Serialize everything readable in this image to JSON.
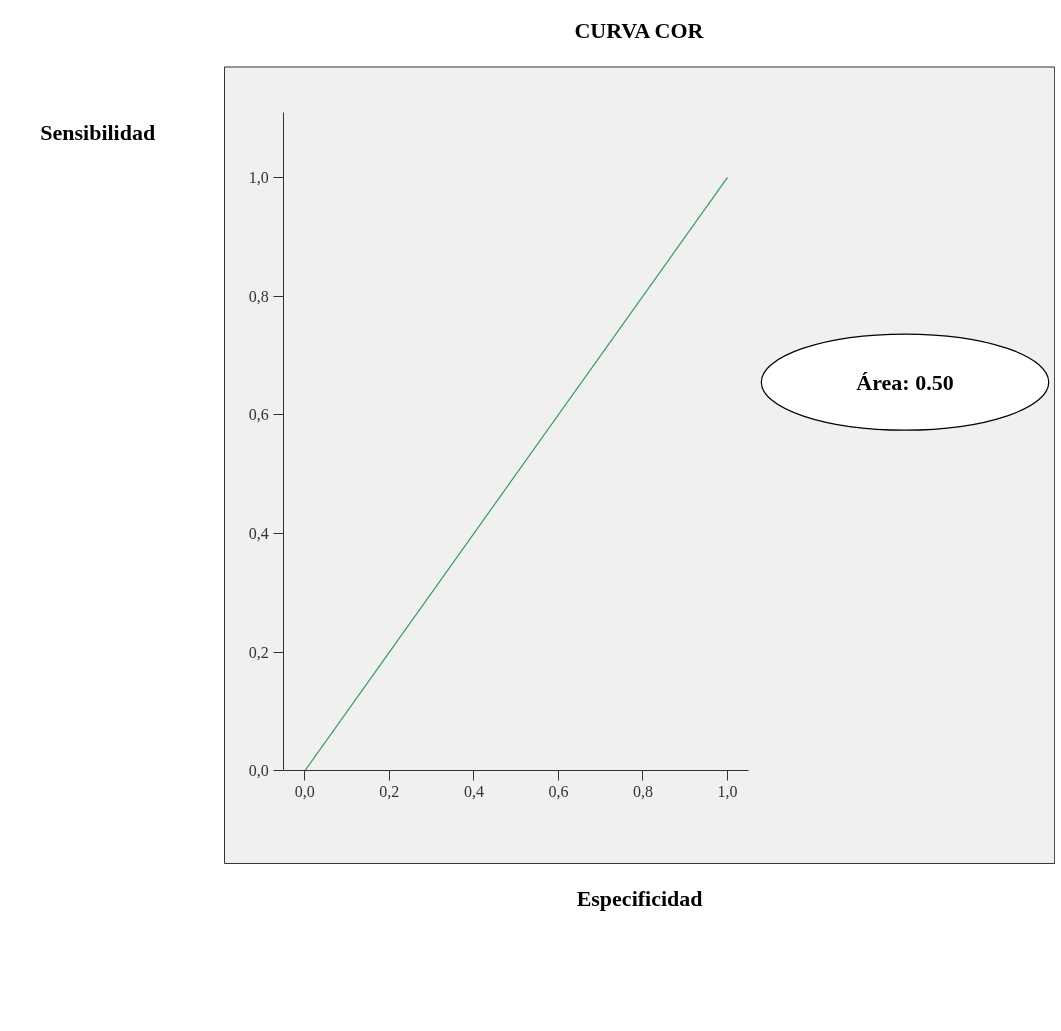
{
  "chart_data": {
    "type": "line",
    "title": "CURVA COR",
    "xlabel": "Especificidad",
    "ylabel": "Sensibilidad",
    "x": [
      0,
      1
    ],
    "series": [
      {
        "color": "#2e9e5a",
        "values": [
          0,
          1
        ]
      }
    ],
    "xlim": [
      -0.05,
      1.05
    ],
    "ylim": [
      0,
      1.11
    ],
    "xticks": [
      {
        "value": 0,
        "label": "0,0"
      },
      {
        "value": 0.2,
        "label": "0,2"
      },
      {
        "value": 0.4,
        "label": "0,4"
      },
      {
        "value": 0.6,
        "label": "0,6"
      },
      {
        "value": 0.8,
        "label": "0,8"
      },
      {
        "value": 1,
        "label": "1,0"
      }
    ],
    "yticks": [
      {
        "value": 0,
        "label": "0,0"
      },
      {
        "value": 0.2,
        "label": "0,2"
      },
      {
        "value": 0.4,
        "label": "0,4"
      },
      {
        "value": 0.6,
        "label": "0,6"
      },
      {
        "value": 0.8,
        "label": "0,8"
      },
      {
        "value": 1,
        "label": "1,0"
      }
    ],
    "annotations": [
      "Área: 0.50"
    ],
    "grid": false,
    "line_style": "solid"
  }
}
